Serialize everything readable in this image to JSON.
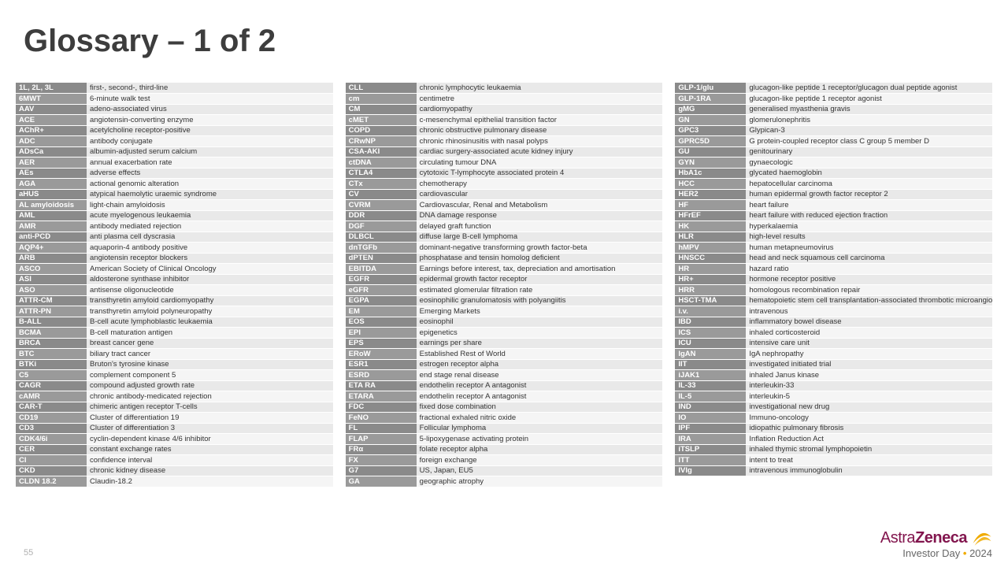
{
  "title": "Glossary – 1 of 2",
  "page_number": "55",
  "footer": {
    "brand_1": "Astra",
    "brand_2": "Zeneca",
    "tagline_prefix": "Investor Day ",
    "tagline_year": "2024"
  },
  "colors": {
    "title": "#3d3d3d",
    "row_odd": "#e9e9e9",
    "row_even": "#f5f5f5",
    "abbr_bg_odd": "#8a8a8a",
    "abbr_bg_even": "#9a9a9a",
    "abbr_text": "#ffffff",
    "def_text": "#333333",
    "brand": "#82164e",
    "accent": "#f0ab00"
  },
  "columns": [
    {
      "rows": [
        {
          "abbr": "1L, 2L, 3L",
          "def": "first-, second-, third-line"
        },
        {
          "abbr": "6MWT",
          "def": "6-minute walk test"
        },
        {
          "abbr": "AAV",
          "def": "adeno-associated virus"
        },
        {
          "abbr": "ACE",
          "def": "angiotensin-converting enzyme"
        },
        {
          "abbr": "AChR+",
          "def": "acetylcholine receptor-positive"
        },
        {
          "abbr": "ADC",
          "def": "antibody conjugate"
        },
        {
          "abbr": "ADsCa",
          "def": "albumin-adjusted serum calcium"
        },
        {
          "abbr": "AER",
          "def": "annual exacerbation rate"
        },
        {
          "abbr": "AEs",
          "def": "adverse effects"
        },
        {
          "abbr": "AGA",
          "def": "actional genomic alteration"
        },
        {
          "abbr": "aHUS",
          "def": "atypical haemolytic uraemic syndrome"
        },
        {
          "abbr": "AL amyloidosis",
          "def": "light-chain amyloidosis"
        },
        {
          "abbr": "AML",
          "def": "acute myelogenous leukaemia"
        },
        {
          "abbr": "AMR",
          "def": "antibody mediated rejection"
        },
        {
          "abbr": "anti-PCD",
          "def": "anti plasma cell dyscrasia"
        },
        {
          "abbr": "AQP4+",
          "def": "aquaporin-4 antibody positive"
        },
        {
          "abbr": "ARB",
          "def": "angiotensin receptor blockers"
        },
        {
          "abbr": "ASCO",
          "def": "American Society of Clinical Oncology"
        },
        {
          "abbr": "ASI",
          "def": "aldosterone synthase inhibitor"
        },
        {
          "abbr": "ASO",
          "def": "antisense oligonucleotide"
        },
        {
          "abbr": "ATTR-CM",
          "def": "transthyretin amyloid cardiomyopathy"
        },
        {
          "abbr": "ATTR-PN",
          "def": "transthyretin amyloid polyneuropathy"
        },
        {
          "abbr": "B-ALL",
          "def": "B-cell acute lymphoblastic leukaemia"
        },
        {
          "abbr": "BCMA",
          "def": "B-cell maturation antigen"
        },
        {
          "abbr": "BRCA",
          "def": "breast cancer gene"
        },
        {
          "abbr": "BTC",
          "def": "biliary tract cancer"
        },
        {
          "abbr": "BTKi",
          "def": "Bruton's tyrosine kinase"
        },
        {
          "abbr": "C5",
          "def": "complement component 5"
        },
        {
          "abbr": "CAGR",
          "def": "compound adjusted growth rate"
        },
        {
          "abbr": "cAMR",
          "def": "chronic antibody-medicated rejection"
        },
        {
          "abbr": "CAR-T",
          "def": "chimeric antigen receptor T-cells"
        },
        {
          "abbr": "CD19",
          "def": "Cluster of differentiation 19"
        },
        {
          "abbr": "CD3",
          "def": "Cluster of differentiation 3"
        },
        {
          "abbr": "CDK4/6i",
          "def": "cyclin-dependent kinase 4/6 inhibitor"
        },
        {
          "abbr": "CER",
          "def": "constant exchange rates"
        },
        {
          "abbr": "CI",
          "def": "confidence interval"
        },
        {
          "abbr": "CKD",
          "def": "chronic kidney disease"
        },
        {
          "abbr": "CLDN 18.2",
          "def": "Claudin-18.2"
        }
      ]
    },
    {
      "rows": [
        {
          "abbr": "CLL",
          "def": "chronic lymphocytic leukaemia"
        },
        {
          "abbr": "cm",
          "def": "centimetre"
        },
        {
          "abbr": "CM",
          "def": "cardiomyopathy"
        },
        {
          "abbr": "cMET",
          "def": "c-mesenchymal epithelial transition factor"
        },
        {
          "abbr": "COPD",
          "def": "chronic obstructive pulmonary disease"
        },
        {
          "abbr": "CRwNP",
          "def": "chronic rhinosinusitis with nasal polyps"
        },
        {
          "abbr": "CSA-AKI",
          "def": "cardiac surgery-associated acute kidney injury"
        },
        {
          "abbr": "ctDNA",
          "def": "circulating tumour DNA"
        },
        {
          "abbr": "CTLA4",
          "def": "cytotoxic T-lymphocyte associated protein 4"
        },
        {
          "abbr": "CTx",
          "def": "chemotherapy"
        },
        {
          "abbr": "CV",
          "def": "cardiovascular"
        },
        {
          "abbr": "CVRM",
          "def": "Cardiovascular, Renal and Metabolism"
        },
        {
          "abbr": "DDR",
          "def": "DNA damage response"
        },
        {
          "abbr": "DGF",
          "def": "delayed graft function"
        },
        {
          "abbr": "DLBCL",
          "def": "diffuse large B-cell lymphoma"
        },
        {
          "abbr": "dnTGFb",
          "def": "dominant-negative transforming growth factor-beta"
        },
        {
          "abbr": "dPTEN",
          "def": "phosphatase and tensin homolog deficient"
        },
        {
          "abbr": "EBITDA",
          "def": "Earnings before interest, tax, depreciation and amortisation"
        },
        {
          "abbr": "EGFR",
          "def": "epidermal growth factor receptor"
        },
        {
          "abbr": "eGFR",
          "def": "estimated glomerular filtration rate"
        },
        {
          "abbr": "EGPA",
          "def": "eosinophilic granulomatosis with polyangiitis"
        },
        {
          "abbr": "EM",
          "def": "Emerging Markets"
        },
        {
          "abbr": "EOS",
          "def": "eosinophil"
        },
        {
          "abbr": "EPI",
          "def": "epigenetics"
        },
        {
          "abbr": "EPS",
          "def": "earnings per share"
        },
        {
          "abbr": "ERoW",
          "def": "Established Rest of World"
        },
        {
          "abbr": "ESR1",
          "def": "estrogen receptor alpha"
        },
        {
          "abbr": "ESRD",
          "def": "end stage renal disease"
        },
        {
          "abbr": "ETA RA",
          "def": "endothelin receptor A antagonist"
        },
        {
          "abbr": "ETARA",
          "def": "endothelin receptor A antagonist"
        },
        {
          "abbr": "FDC",
          "def": "fixed dose combination"
        },
        {
          "abbr": "FeNO",
          "def": "fractional exhaled nitric oxide"
        },
        {
          "abbr": "FL",
          "def": "Follicular lymphoma"
        },
        {
          "abbr": "FLAP",
          "def": "5-lipoxygenase activating protein"
        },
        {
          "abbr": "FRα",
          "def": "folate receptor alpha"
        },
        {
          "abbr": "FX",
          "def": "foreign exchange"
        },
        {
          "abbr": "G7",
          "def": "US, Japan, EU5"
        },
        {
          "abbr": "GA",
          "def": "geographic atrophy"
        }
      ]
    },
    {
      "rows": [
        {
          "abbr": "GLP-1/glu",
          "def": "glucagon-like peptide 1 receptor/glucagon dual peptide agonist"
        },
        {
          "abbr": "GLP-1RA",
          "def": "glucagon-like peptide 1 receptor agonist"
        },
        {
          "abbr": "gMG",
          "def": "generalised myasthenia gravis"
        },
        {
          "abbr": "GN",
          "def": "glomerulonephritis"
        },
        {
          "abbr": "GPC3",
          "def": "Glypican-3"
        },
        {
          "abbr": "GPRC5D",
          "def": "G protein-coupled receptor class C group 5 member D"
        },
        {
          "abbr": "GU",
          "def": "genitourinary"
        },
        {
          "abbr": "GYN",
          "def": "gynaecologic"
        },
        {
          "abbr": "HbA1c",
          "def": "glycated haemoglobin"
        },
        {
          "abbr": "HCC",
          "def": "hepatocellular carcinoma"
        },
        {
          "abbr": "HER2",
          "def": "human epidermal growth factor receptor 2"
        },
        {
          "abbr": "HF",
          "def": "heart failure"
        },
        {
          "abbr": "HFrEF",
          "def": "heart failure with reduced ejection fraction"
        },
        {
          "abbr": "HK",
          "def": "hyperkalaemia"
        },
        {
          "abbr": "HLR",
          "def": "high-level results"
        },
        {
          "abbr": "hMPV",
          "def": "human metapneumovirus"
        },
        {
          "abbr": "HNSCC",
          "def": "head and neck squamous cell carcinoma"
        },
        {
          "abbr": "HR",
          "def": "hazard ratio"
        },
        {
          "abbr": "HR+",
          "def": "hormone receptor positive"
        },
        {
          "abbr": "HRR",
          "def": "homologous recombination repair"
        },
        {
          "abbr": "HSCT-TMA",
          "def": "hematopoietic stem cell transplantation-associated thrombotic microangiopathy"
        },
        {
          "abbr": "i.v.",
          "def": "intravenous"
        },
        {
          "abbr": "IBD",
          "def": "inflammatory bowel disease"
        },
        {
          "abbr": "ICS",
          "def": "inhaled corticosteroid"
        },
        {
          "abbr": "ICU",
          "def": "intensive care unit"
        },
        {
          "abbr": "IgAN",
          "def": "IgA nephropathy"
        },
        {
          "abbr": "IIT",
          "def": "investigated initiated trial"
        },
        {
          "abbr": "iJAK1",
          "def": "inhaled Janus kinase"
        },
        {
          "abbr": "IL-33",
          "def": "interleukin-33"
        },
        {
          "abbr": "IL-5",
          "def": "interleukin-5"
        },
        {
          "abbr": "IND",
          "def": "investigational new drug"
        },
        {
          "abbr": "IO",
          "def": "Immuno-oncology"
        },
        {
          "abbr": "IPF",
          "def": "idiopathic pulmonary fibrosis"
        },
        {
          "abbr": "IRA",
          "def": "Inflation Reduction Act"
        },
        {
          "abbr": "iTSLP",
          "def": "inhaled thymic stromal lymphopoietin"
        },
        {
          "abbr": "ITT",
          "def": "intent to treat"
        },
        {
          "abbr": "IVIg",
          "def": "intravenous immunoglobulin"
        }
      ]
    }
  ]
}
